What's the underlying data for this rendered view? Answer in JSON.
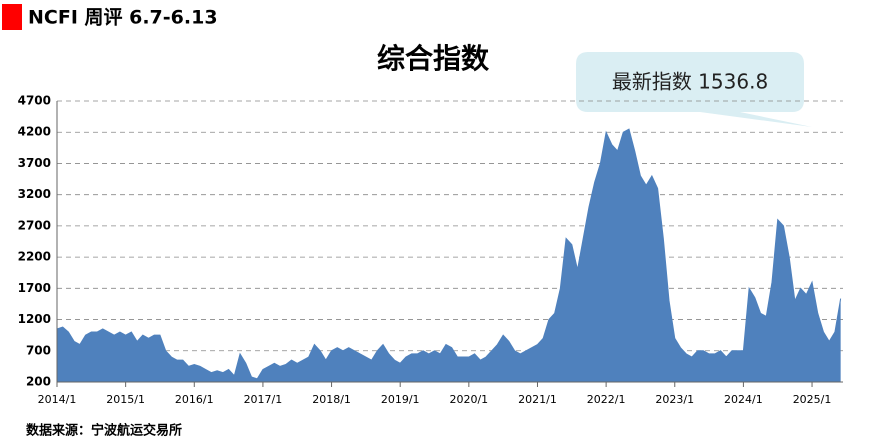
{
  "header": "NCFI 周评 6.7-6.13",
  "source": "数据来源：宁波航运交易所",
  "chart_data": {
    "type": "area",
    "title": "综合指数",
    "annotation": "最新指数 1536.8",
    "color": "#4f81bd",
    "grid": true,
    "categories": [
      "2014/1",
      "2014/2",
      "2014/3",
      "2014/4",
      "2014/5",
      "2014/6",
      "2014/7",
      "2014/8",
      "2014/9",
      "2014/10",
      "2014/11",
      "2014/12",
      "2015/1",
      "2015/2",
      "2015/3",
      "2015/4",
      "2015/5",
      "2015/6",
      "2015/7",
      "2015/8",
      "2015/9",
      "2015/10",
      "2015/11",
      "2015/12",
      "2016/1",
      "2016/2",
      "2016/3",
      "2016/4",
      "2016/5",
      "2016/6",
      "2016/7",
      "2016/8",
      "2016/9",
      "2016/10",
      "2016/11",
      "2016/12",
      "2017/1",
      "2017/2",
      "2017/3",
      "2017/4",
      "2017/5",
      "2017/6",
      "2017/7",
      "2017/8",
      "2017/9",
      "2017/10",
      "2017/11",
      "2017/12",
      "2018/1",
      "2018/2",
      "2018/3",
      "2018/4",
      "2018/5",
      "2018/6",
      "2018/7",
      "2018/8",
      "2018/9",
      "2018/10",
      "2018/11",
      "2018/12",
      "2019/1",
      "2019/2",
      "2019/3",
      "2019/4",
      "2019/5",
      "2019/6",
      "2019/7",
      "2019/8",
      "2019/9",
      "2019/10",
      "2019/11",
      "2019/12",
      "2020/1",
      "2020/2",
      "2020/3",
      "2020/4",
      "2020/5",
      "2020/6",
      "2020/7",
      "2020/8",
      "2020/9",
      "2020/10",
      "2020/11",
      "2020/12",
      "2021/1",
      "2021/2",
      "2021/3",
      "2021/4",
      "2021/5",
      "2021/6",
      "2021/7",
      "2021/8",
      "2021/9",
      "2021/10",
      "2021/11",
      "2021/12",
      "2022/1",
      "2022/2",
      "2022/3",
      "2022/4",
      "2022/5",
      "2022/6",
      "2022/7",
      "2022/8",
      "2022/9",
      "2022/10",
      "2022/11",
      "2022/12",
      "2023/1",
      "2023/2",
      "2023/3",
      "2023/4",
      "2023/5",
      "2023/6",
      "2023/7",
      "2023/8",
      "2023/9",
      "2023/10",
      "2023/11",
      "2023/12",
      "2024/1",
      "2024/2",
      "2024/3",
      "2024/4",
      "2024/5",
      "2024/6",
      "2024/7",
      "2024/8",
      "2024/9",
      "2024/10",
      "2024/11",
      "2024/12",
      "2025/1",
      "2025/2",
      "2025/3",
      "2025/4",
      "2025/5",
      "2025/6"
    ],
    "values": [
      1050,
      1080,
      1000,
      850,
      800,
      950,
      1000,
      1000,
      1050,
      1000,
      950,
      1000,
      950,
      1000,
      850,
      950,
      900,
      950,
      950,
      700,
      600,
      550,
      550,
      450,
      480,
      450,
      400,
      350,
      380,
      350,
      400,
      300,
      650,
      500,
      280,
      250,
      400,
      450,
      500,
      450,
      480,
      550,
      500,
      550,
      600,
      800,
      700,
      550,
      700,
      750,
      700,
      750,
      700,
      650,
      600,
      550,
      700,
      800,
      650,
      550,
      500,
      600,
      650,
      650,
      700,
      650,
      700,
      650,
      800,
      750,
      600,
      600,
      600,
      650,
      550,
      600,
      700,
      800,
      950,
      850,
      700,
      650,
      700,
      750,
      800,
      900,
      1200,
      1300,
      1700,
      2500,
      2400,
      2000,
      2500,
      3000,
      3400,
      3700,
      4200,
      4000,
      3900,
      4200,
      4250,
      3900,
      3500,
      3350,
      3500,
      3300,
      2500,
      1500,
      900,
      750,
      650,
      600,
      700,
      700,
      650,
      650,
      700,
      600,
      700,
      700,
      700,
      1700,
      1550,
      1300,
      1250,
      1800,
      2800,
      2700,
      2200,
      1500,
      1700,
      1600,
      1800,
      1300,
      1000,
      850,
      1000,
      1536.8
    ],
    "xticks": [
      "2014/1",
      "2015/1",
      "2016/1",
      "2017/1",
      "2018/1",
      "2019/1",
      "2020/1",
      "2021/1",
      "2022/1",
      "2023/1",
      "2024/1",
      "2025/1"
    ],
    "ylim": [
      200,
      4700
    ],
    "yticks": [
      200,
      700,
      1200,
      1700,
      2200,
      2700,
      3200,
      3700,
      4200,
      4700
    ]
  }
}
